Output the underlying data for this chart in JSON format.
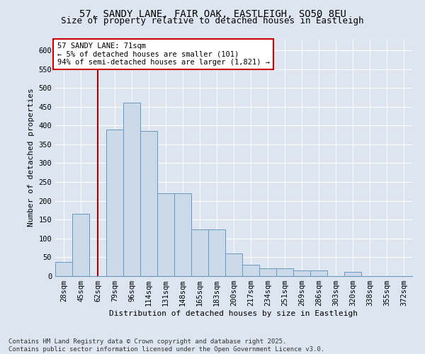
{
  "title1": "57, SANDY LANE, FAIR OAK, EASTLEIGH, SO50 8EU",
  "title2": "Size of property relative to detached houses in Eastleigh",
  "xlabel": "Distribution of detached houses by size in Eastleigh",
  "ylabel": "Number of detached properties",
  "bar_labels": [
    "28sqm",
    "45sqm",
    "62sqm",
    "79sqm",
    "96sqm",
    "114sqm",
    "131sqm",
    "148sqm",
    "165sqm",
    "183sqm",
    "200sqm",
    "217sqm",
    "234sqm",
    "251sqm",
    "269sqm",
    "286sqm",
    "303sqm",
    "320sqm",
    "338sqm",
    "355sqm",
    "372sqm"
  ],
  "bar_values": [
    38,
    165,
    0,
    390,
    460,
    385,
    220,
    220,
    125,
    125,
    60,
    30,
    20,
    20,
    15,
    15,
    0,
    12,
    0,
    0,
    0
  ],
  "bar_color": "#ccd9e8",
  "bar_edge_color": "#6699bb",
  "background_color": "#dde6f0",
  "grid_color": "#ffffff",
  "vline_x": 2.0,
  "vline_color": "#aa0000",
  "annotation_text": "57 SANDY LANE: 71sqm\n← 5% of detached houses are smaller (101)\n94% of semi-detached houses are larger (1,821) →",
  "annotation_box_color": "#ffffff",
  "annotation_box_edge": "#cc0000",
  "ylim": [
    0,
    630
  ],
  "yticks": [
    0,
    50,
    100,
    150,
    200,
    250,
    300,
    350,
    400,
    450,
    500,
    550,
    600
  ],
  "footnote": "Contains HM Land Registry data © Crown copyright and database right 2025.\nContains public sector information licensed under the Open Government Licence v3.0.",
  "title_fontsize": 10,
  "subtitle_fontsize": 9,
  "axis_label_fontsize": 8,
  "tick_fontsize": 7.5,
  "annotation_fontsize": 7.5,
  "footnote_fontsize": 6.5
}
